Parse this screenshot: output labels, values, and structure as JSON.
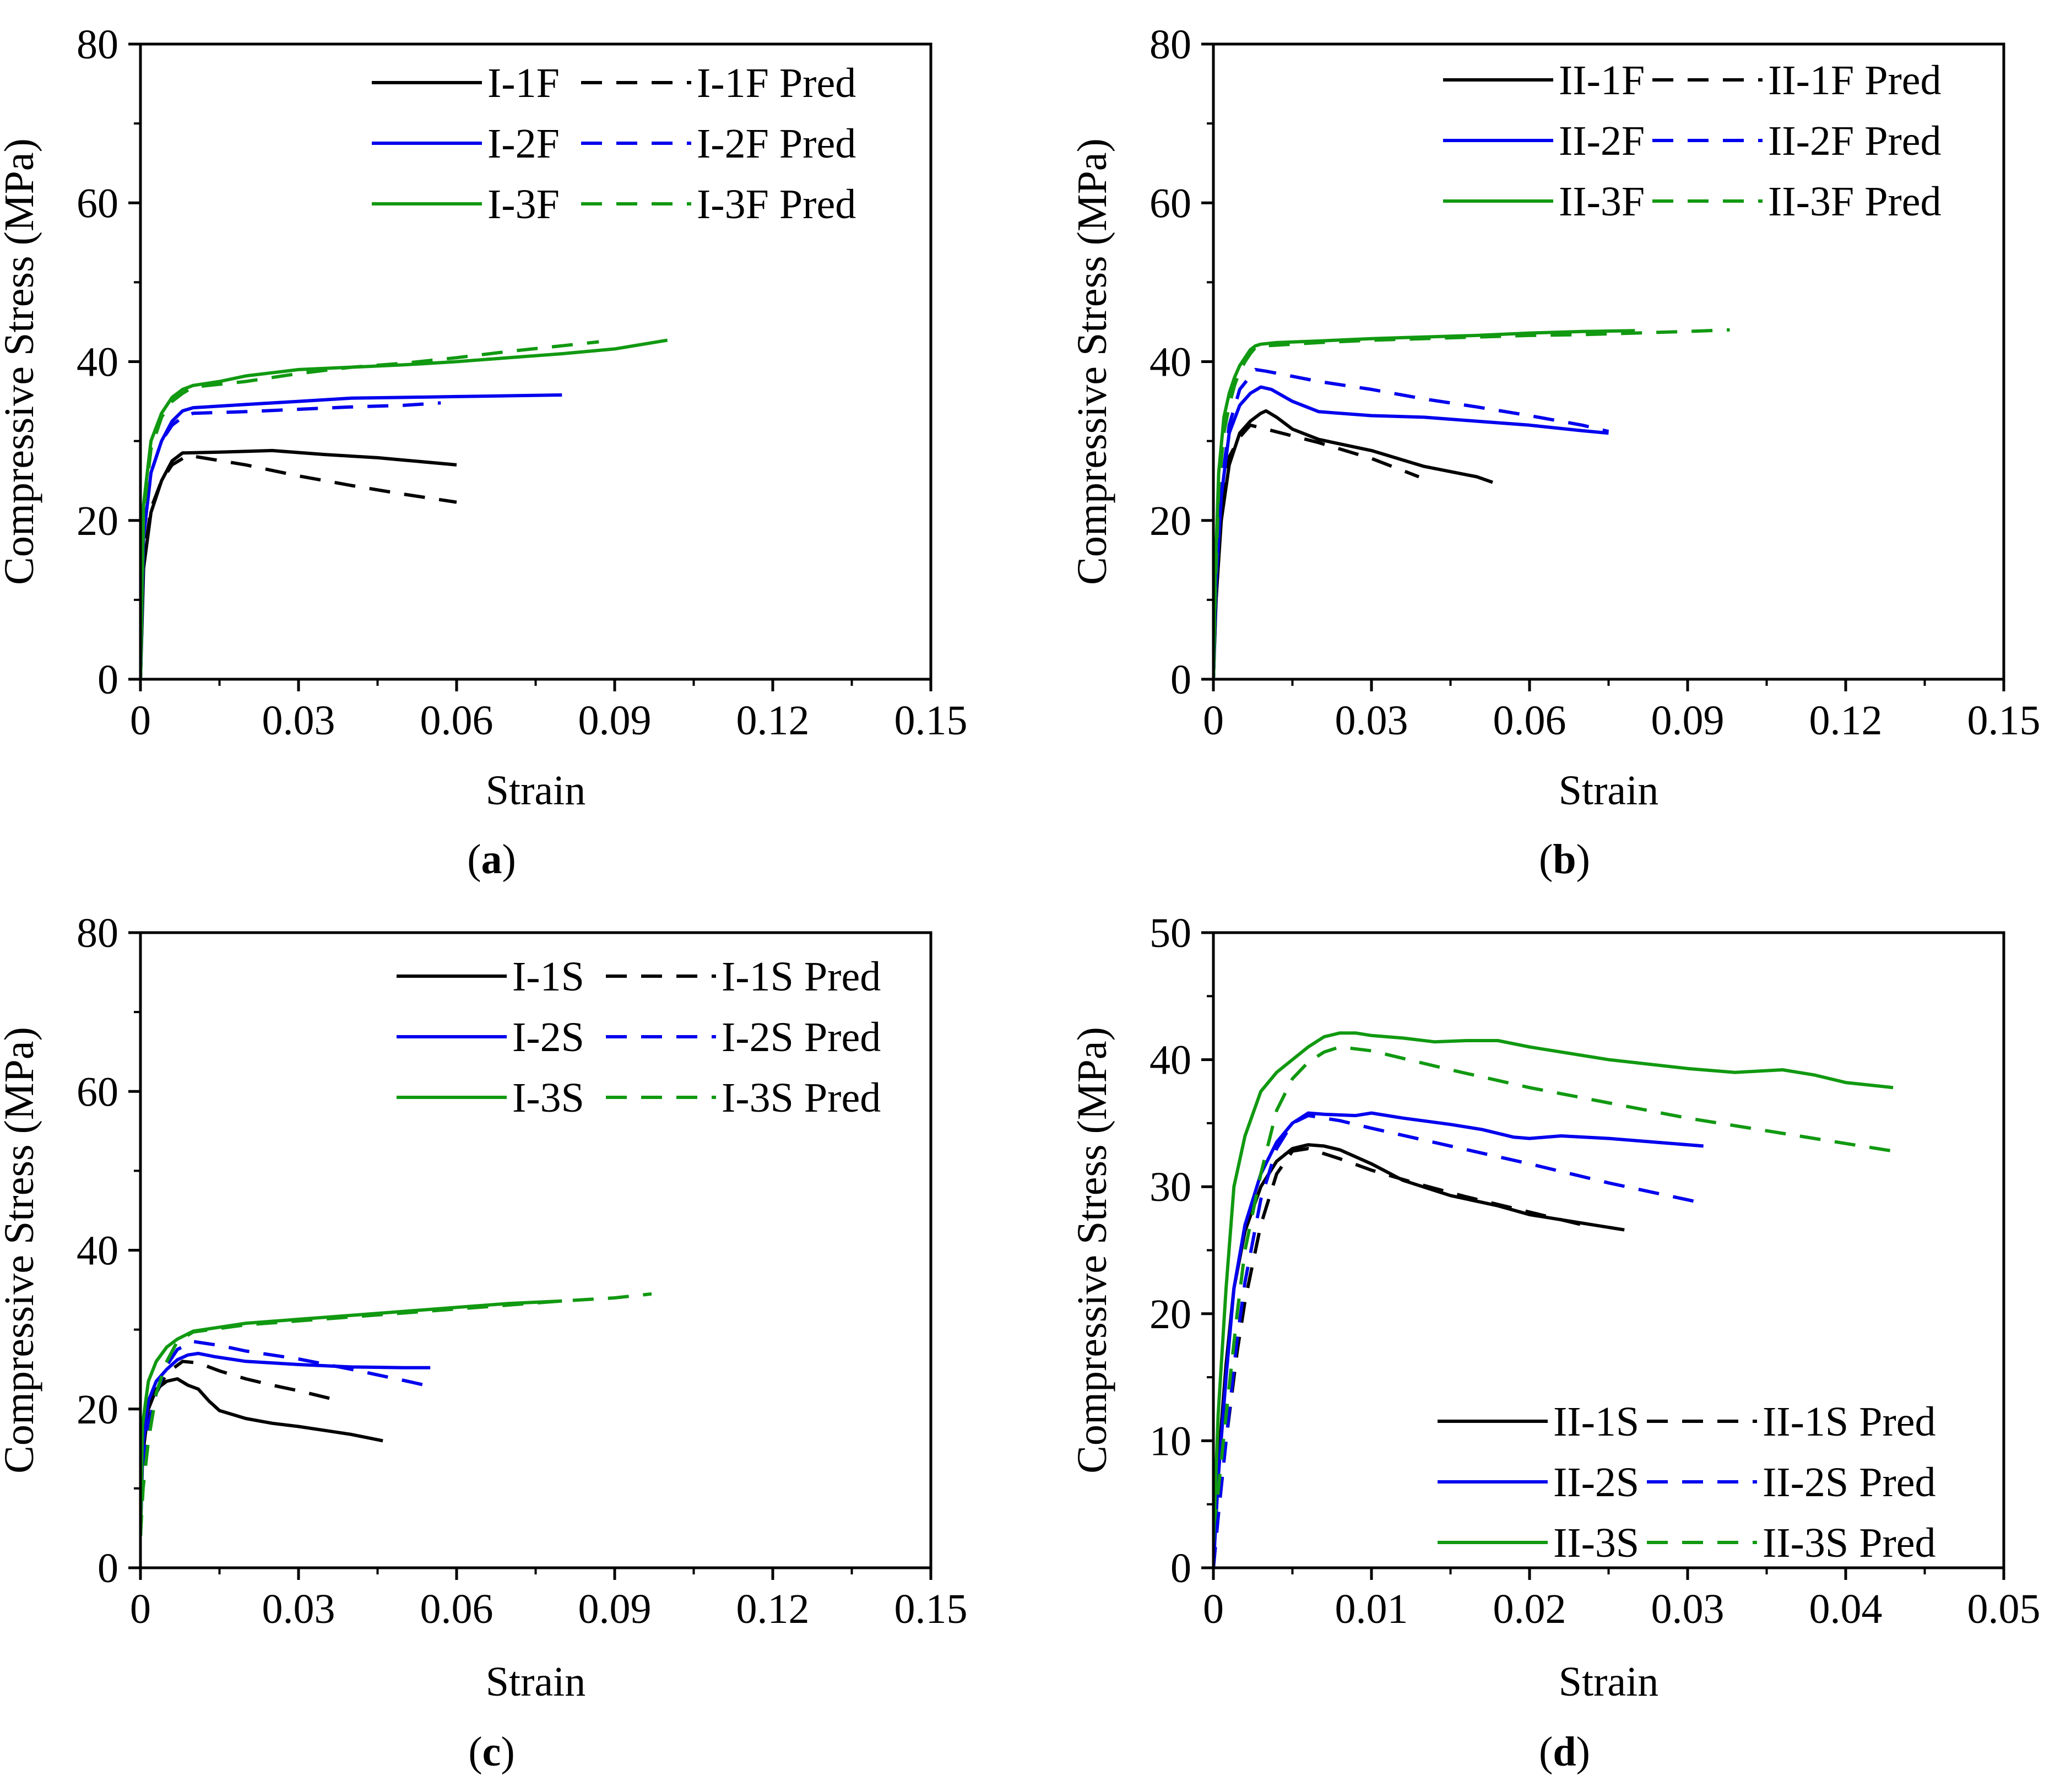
{
  "chart_data": [
    {
      "type": "line",
      "caption": "(a)",
      "caption_letter": "a",
      "xlabel": "Strain",
      "ylabel": "Compressive Stress (MPa)",
      "xlim": [
        0,
        0.15
      ],
      "ylim": [
        0,
        80
      ],
      "xticks": [
        "0",
        "0.03",
        "0.06",
        "0.09",
        "0.12",
        "0.15"
      ],
      "yticks": [
        "0",
        "20",
        "40",
        "60",
        "80"
      ],
      "grid": false,
      "legend_position": "top-right",
      "series": [
        {
          "name": "I-1F",
          "color": "#000000",
          "dash": "solid",
          "x": [
            0,
            0.0006,
            0.002,
            0.004,
            0.006,
            0.008,
            0.015,
            0.025,
            0.035,
            0.045,
            0.05,
            0.06
          ],
          "y": [
            0,
            14,
            21,
            25,
            27.5,
            28.5,
            28.6,
            28.8,
            28.3,
            27.9,
            27.6,
            27.0
          ]
        },
        {
          "name": "I-1F Pred",
          "color": "#000000",
          "dash": "dashed",
          "x": [
            0,
            0.0006,
            0.002,
            0.004,
            0.006,
            0.009,
            0.02,
            0.03,
            0.04,
            0.05,
            0.06
          ],
          "y": [
            0,
            15,
            21.5,
            25,
            27,
            28.2,
            27,
            25.6,
            24.4,
            23.3,
            22.3
          ]
        },
        {
          "name": "I-2F",
          "color": "#0000ee",
          "dash": "solid",
          "x": [
            0,
            0.0006,
            0.002,
            0.004,
            0.006,
            0.008,
            0.01,
            0.02,
            0.03,
            0.04,
            0.05,
            0.06,
            0.08
          ],
          "y": [
            0,
            18,
            26,
            30,
            32.5,
            33.8,
            34.2,
            34.6,
            35.0,
            35.4,
            35.5,
            35.6,
            35.8
          ]
        },
        {
          "name": "I-2F Pred",
          "color": "#0000ee",
          "dash": "dashed",
          "x": [
            0,
            0.0006,
            0.002,
            0.004,
            0.006,
            0.008,
            0.01,
            0.02,
            0.03,
            0.04,
            0.05,
            0.057
          ],
          "y": [
            0,
            18,
            26,
            30,
            32,
            33,
            33.5,
            33.7,
            34.0,
            34.3,
            34.5,
            34.8
          ]
        },
        {
          "name": "I-3F",
          "color": "#119911",
          "dash": "solid",
          "x": [
            0,
            0.0006,
            0.002,
            0.004,
            0.006,
            0.008,
            0.01,
            0.015,
            0.02,
            0.03,
            0.04,
            0.05,
            0.06,
            0.07,
            0.08,
            0.09,
            0.1
          ],
          "y": [
            0,
            22,
            30,
            33.5,
            35.5,
            36.5,
            37,
            37.5,
            38.2,
            39.0,
            39.3,
            39.6,
            40.0,
            40.5,
            41.0,
            41.6,
            42.7
          ]
        },
        {
          "name": "I-3F Pred",
          "color": "#119911",
          "dash": "dashed",
          "x": [
            0,
            0.0006,
            0.002,
            0.004,
            0.006,
            0.008,
            0.01,
            0.02,
            0.03,
            0.04,
            0.05,
            0.06,
            0.07,
            0.08,
            0.087
          ],
          "y": [
            0,
            21,
            29,
            33,
            35,
            36,
            36.8,
            37.5,
            38.5,
            39.3,
            39.8,
            40.5,
            41.3,
            42.0,
            42.5
          ]
        }
      ]
    },
    {
      "type": "line",
      "caption": "(b)",
      "caption_letter": "b",
      "xlabel": "Strain",
      "ylabel": "Compressive Stress (MPa)",
      "xlim": [
        0,
        0.15
      ],
      "ylim": [
        0,
        80
      ],
      "xticks": [
        "0",
        "0.03",
        "0.06",
        "0.09",
        "0.12",
        "0.15"
      ],
      "yticks": [
        "0",
        "20",
        "40",
        "60",
        "80"
      ],
      "grid": false,
      "legend_position": "top-right",
      "series": [
        {
          "name": "II-1F",
          "color": "#000000",
          "dash": "solid",
          "x": [
            0,
            0.0005,
            0.0015,
            0.003,
            0.005,
            0.007,
            0.009,
            0.01,
            0.012,
            0.015,
            0.02,
            0.03,
            0.04,
            0.05,
            0.053
          ],
          "y": [
            0,
            10,
            20,
            27,
            31,
            32.5,
            33.5,
            33.8,
            33,
            31.5,
            30.2,
            28.8,
            26.8,
            25.5,
            24.8
          ]
        },
        {
          "name": "II-1F Pred",
          "color": "#000000",
          "dash": "dashed",
          "x": [
            0,
            0.0005,
            0.0015,
            0.003,
            0.005,
            0.007,
            0.01,
            0.02,
            0.03,
            0.039
          ],
          "y": [
            0,
            10,
            21,
            28,
            30.5,
            32,
            31.5,
            29.8,
            27.8,
            25.5
          ]
        },
        {
          "name": "II-2F",
          "color": "#0000ee",
          "dash": "solid",
          "x": [
            0,
            0.0005,
            0.0015,
            0.003,
            0.005,
            0.007,
            0.009,
            0.011,
            0.015,
            0.02,
            0.03,
            0.04,
            0.05,
            0.06,
            0.07,
            0.075
          ],
          "y": [
            0,
            12,
            23,
            31,
            34.5,
            36,
            36.8,
            36.5,
            35,
            33.7,
            33.2,
            33.0,
            32.5,
            32.0,
            31.3,
            31.0
          ]
        },
        {
          "name": "II-2F Pred",
          "color": "#0000ee",
          "dash": "dashed",
          "x": [
            0,
            0.0005,
            0.0015,
            0.003,
            0.005,
            0.008,
            0.01,
            0.02,
            0.03,
            0.04,
            0.05,
            0.06,
            0.07,
            0.075
          ],
          "y": [
            0,
            12,
            24,
            32,
            36.5,
            39,
            38.8,
            37.5,
            36.5,
            35.3,
            34.3,
            33.2,
            32.0,
            31.2
          ]
        },
        {
          "name": "II-3F",
          "color": "#119911",
          "dash": "solid",
          "x": [
            0,
            0.0004,
            0.001,
            0.002,
            0.003,
            0.004,
            0.005,
            0.006,
            0.007,
            0.008,
            0.009,
            0.012,
            0.02,
            0.03,
            0.04,
            0.05,
            0.06,
            0.07,
            0.08
          ],
          "y": [
            0,
            14,
            26,
            33,
            36,
            38,
            39.5,
            40.5,
            41.5,
            42,
            42.2,
            42.4,
            42.6,
            42.9,
            43.1,
            43.3,
            43.6,
            43.8,
            43.9
          ]
        },
        {
          "name": "II-3F Pred",
          "color": "#119911",
          "dash": "dashed",
          "x": [
            0,
            0.0004,
            0.001,
            0.002,
            0.003,
            0.004,
            0.005,
            0.006,
            0.007,
            0.008,
            0.01,
            0.02,
            0.03,
            0.04,
            0.05,
            0.06,
            0.07,
            0.08,
            0.09,
            0.098
          ],
          "y": [
            0,
            12,
            24,
            31,
            34.5,
            37,
            38.8,
            40,
            41,
            41.8,
            42,
            42.4,
            42.7,
            42.9,
            43.1,
            43.3,
            43.4,
            43.6,
            43.8,
            44.0
          ]
        }
      ]
    },
    {
      "type": "line",
      "caption": "(c)",
      "caption_letter": "c",
      "xlabel": "Strain",
      "ylabel": "Compressive Stress (MPa)",
      "xlim": [
        0,
        0.15
      ],
      "ylim": [
        0,
        80
      ],
      "xticks": [
        "0",
        "0.03",
        "0.06",
        "0.09",
        "0.12",
        "0.15"
      ],
      "yticks": [
        "0",
        "20",
        "40",
        "60",
        "80"
      ],
      "grid": false,
      "legend_position": "top-right",
      "series": [
        {
          "name": "I-1S",
          "color": "#000000",
          "dash": "solid",
          "x": [
            0,
            0.0004,
            0.0015,
            0.003,
            0.005,
            0.007,
            0.009,
            0.011,
            0.013,
            0.015,
            0.02,
            0.025,
            0.03,
            0.035,
            0.04,
            0.046
          ],
          "y": [
            4,
            14,
            20,
            22.5,
            23.5,
            23.8,
            23,
            22.5,
            21,
            19.8,
            18.8,
            18.2,
            17.8,
            17.3,
            16.8,
            16.0
          ]
        },
        {
          "name": "I-1S Pred",
          "color": "#000000",
          "dash": "dashed",
          "x": [
            0,
            0.0005,
            0.0015,
            0.003,
            0.005,
            0.008,
            0.011,
            0.015,
            0.02,
            0.025,
            0.03,
            0.038
          ],
          "y": [
            4,
            12,
            18,
            22,
            24.5,
            26,
            25.8,
            24.8,
            23.8,
            23,
            22.3,
            21.0
          ]
        },
        {
          "name": "I-2S",
          "color": "#0000ee",
          "dash": "solid",
          "x": [
            0,
            0.0004,
            0.0015,
            0.003,
            0.005,
            0.007,
            0.009,
            0.011,
            0.014,
            0.02,
            0.03,
            0.04,
            0.05,
            0.055
          ],
          "y": [
            4,
            15,
            21,
            23.5,
            25,
            26.2,
            26.8,
            27,
            26.6,
            26,
            25.6,
            25.3,
            25.2,
            25.2
          ]
        },
        {
          "name": "I-2S Pred",
          "color": "#0000ee",
          "dash": "dashed",
          "x": [
            0,
            0.0005,
            0.0015,
            0.003,
            0.005,
            0.007,
            0.01,
            0.015,
            0.02,
            0.03,
            0.04,
            0.05,
            0.054
          ],
          "y": [
            4,
            12,
            18,
            22,
            25.5,
            27.5,
            28.5,
            28,
            27.3,
            26.3,
            25.0,
            23.6,
            23.0
          ]
        },
        {
          "name": "I-3S",
          "color": "#119911",
          "dash": "solid",
          "x": [
            0,
            0.0004,
            0.0015,
            0.003,
            0.005,
            0.007,
            0.01,
            0.015,
            0.02,
            0.03,
            0.04,
            0.05,
            0.06,
            0.07,
            0.08
          ],
          "y": [
            4,
            18,
            23.5,
            26,
            27.8,
            28.8,
            29.8,
            30.3,
            30.8,
            31.3,
            31.8,
            32.3,
            32.8,
            33.3,
            33.6
          ]
        },
        {
          "name": "I-3S Pred",
          "color": "#119911",
          "dash": "dashed",
          "x": [
            0,
            0.0005,
            0.0015,
            0.003,
            0.005,
            0.007,
            0.01,
            0.02,
            0.03,
            0.04,
            0.05,
            0.06,
            0.07,
            0.08,
            0.09,
            0.097
          ],
          "y": [
            4,
            10,
            16,
            22,
            26,
            28.5,
            29.7,
            30.6,
            31.1,
            31.6,
            32.1,
            32.6,
            33.1,
            33.6,
            34.0,
            34.5
          ]
        }
      ]
    },
    {
      "type": "line",
      "caption": "(d)",
      "caption_letter": "d",
      "xlabel": "Strain",
      "ylabel": "Compressive Stress (MPa)",
      "xlim": [
        0,
        0.05
      ],
      "ylim": [
        0,
        50
      ],
      "xticks": [
        "0",
        "0.01",
        "0.02",
        "0.03",
        "0.04",
        "0.05"
      ],
      "yticks": [
        "0",
        "10",
        "20",
        "30",
        "40",
        "50"
      ],
      "grid": false,
      "legend_position": "bottom-right",
      "series": [
        {
          "name": "II-1S",
          "color": "#000000",
          "dash": "solid",
          "x": [
            0,
            0.0003,
            0.0008,
            0.0013,
            0.002,
            0.003,
            0.004,
            0.005,
            0.006,
            0.007,
            0.008,
            0.01,
            0.012,
            0.015,
            0.018,
            0.02,
            0.023,
            0.026
          ],
          "y": [
            0,
            8,
            16,
            22,
            26.5,
            30,
            32,
            33,
            33.3,
            33.2,
            32.9,
            31.8,
            30.5,
            29.3,
            28.5,
            27.8,
            27.2,
            26.6
          ]
        },
        {
          "name": "II-1S Pred",
          "color": "#000000",
          "dash": "dashed",
          "x": [
            0,
            0.0003,
            0.0008,
            0.0015,
            0.002,
            0.003,
            0.004,
            0.005,
            0.006,
            0.008,
            0.01,
            0.013,
            0.016,
            0.02,
            0.024
          ],
          "y": [
            0,
            4,
            10,
            17,
            21,
            27,
            31,
            32.8,
            33,
            32.2,
            31.3,
            30.2,
            29.2,
            28.0,
            26.8
          ]
        },
        {
          "name": "II-2S",
          "color": "#0000ee",
          "dash": "solid",
          "x": [
            0,
            0.0003,
            0.0008,
            0.0013,
            0.002,
            0.003,
            0.004,
            0.005,
            0.006,
            0.007,
            0.009,
            0.01,
            0.012,
            0.015,
            0.017,
            0.019,
            0.02,
            0.022,
            0.025,
            0.028,
            0.031
          ],
          "y": [
            0,
            7,
            15,
            22,
            27,
            31,
            33.5,
            35,
            35.8,
            35.7,
            35.6,
            35.8,
            35.4,
            34.9,
            34.5,
            33.9,
            33.8,
            34.0,
            33.8,
            33.5,
            33.2
          ]
        },
        {
          "name": "II-2S Pred",
          "color": "#0000ee",
          "dash": "dashed",
          "x": [
            0,
            0.0003,
            0.0008,
            0.0015,
            0.002,
            0.003,
            0.004,
            0.005,
            0.006,
            0.008,
            0.01,
            0.015,
            0.02,
            0.025,
            0.031
          ],
          "y": [
            0,
            4,
            10,
            18,
            22.5,
            29,
            33,
            35,
            35.6,
            35.2,
            34.6,
            33.2,
            31.8,
            30.3,
            28.7
          ]
        },
        {
          "name": "II-3S",
          "color": "#119911",
          "dash": "solid",
          "x": [
            0,
            0.0003,
            0.0008,
            0.0013,
            0.002,
            0.003,
            0.004,
            0.005,
            0.006,
            0.007,
            0.008,
            0.009,
            0.01,
            0.012,
            0.014,
            0.016,
            0.018,
            0.02,
            0.025,
            0.03,
            0.033,
            0.036,
            0.038,
            0.04,
            0.043
          ],
          "y": [
            2,
            12,
            22,
            30,
            34,
            37.5,
            39,
            40,
            41,
            41.8,
            42.1,
            42.1,
            41.9,
            41.7,
            41.4,
            41.5,
            41.5,
            41,
            40,
            39.3,
            39,
            39.2,
            38.8,
            38.2,
            37.8
          ]
        },
        {
          "name": "II-3S Pred",
          "color": "#119911",
          "dash": "dashed",
          "x": [
            0,
            0.0003,
            0.0008,
            0.0015,
            0.002,
            0.003,
            0.004,
            0.005,
            0.006,
            0.007,
            0.008,
            0.01,
            0.015,
            0.02,
            0.025,
            0.03,
            0.035,
            0.04,
            0.043
          ],
          "y": [
            3,
            6,
            12,
            20,
            25,
            31,
            36,
            38.5,
            39.8,
            40.6,
            41,
            40.7,
            39.2,
            37.8,
            36.6,
            35.4,
            34.4,
            33.4,
            32.8
          ]
        }
      ]
    }
  ]
}
